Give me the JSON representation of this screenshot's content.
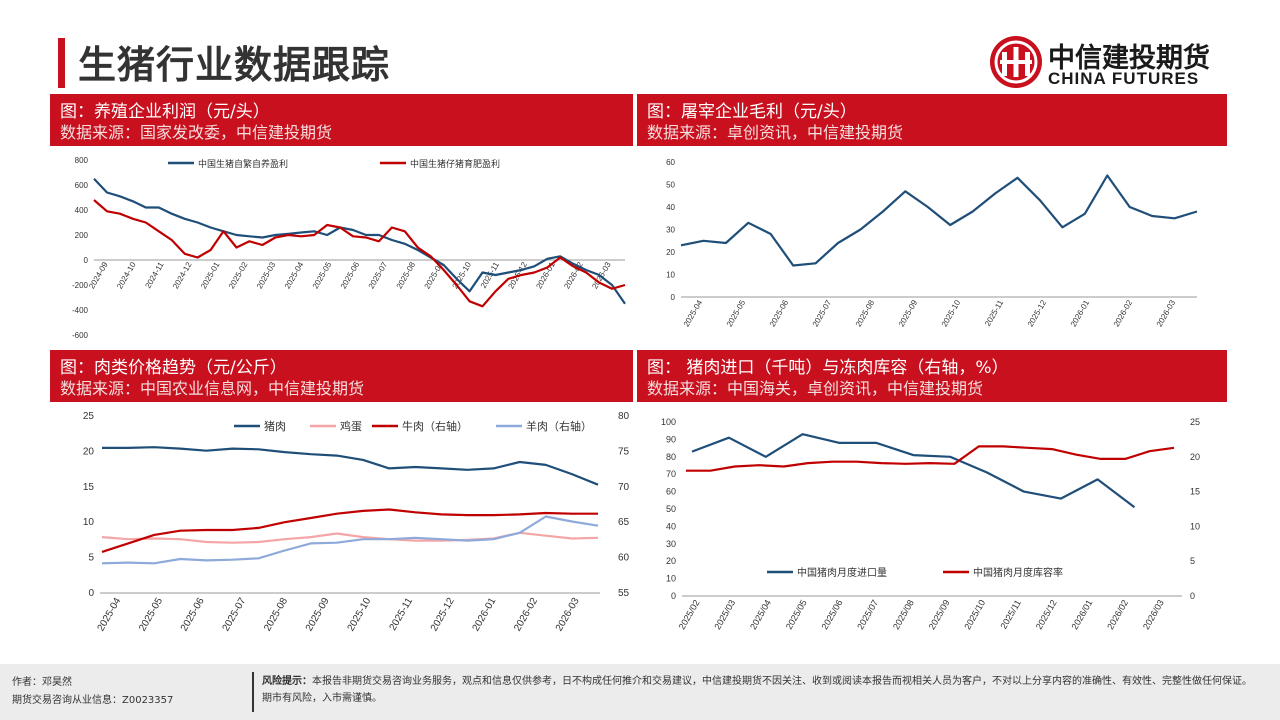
{
  "page": {
    "title": "生猪行业数据跟踪",
    "logo_cn": "中信建投期货",
    "logo_en": "CHINA FUTURES",
    "brand_color": "#c8101e"
  },
  "panels": [
    {
      "title": "图：养殖企业利润（元/头）",
      "source": "数据来源：国家发改委，中信建投期货"
    },
    {
      "title": "图：屠宰企业毛利（元/头）",
      "source": "数据来源：卓创资讯，中信建投期货"
    },
    {
      "title": "图：肉类价格趋势（元/公斤）",
      "source": "数据来源：中国农业信息网，中信建投期货"
    },
    {
      "title": "图：  猪肉进口（千吨）与冻肉库容（右轴，%）",
      "source": "数据来源：中国海关，卓创资讯，中信建投期货"
    }
  ],
  "footer": {
    "author": "作者：邓昊然",
    "license": "期货交易咨询从业信息：Z0023357",
    "risk_label": "风险提示：",
    "risk_text": "本报告非期货交易咨询业务服务，观点和信息仅供参考，日不构成任何推介和交易建议，中信建投期货不因关注、收到或阅读本报告而视相关人员为客户，不对以上分享内容的准确性、有效性、完整性做任何保证。期市有风险，入市需谨慎。"
  },
  "chart_data": [
    {
      "type": "line",
      "ylim": [
        -400,
        800
      ],
      "yticks": [
        "800",
        "600",
        "400",
        "200",
        "0",
        "-200",
        "-400",
        "-600"
      ],
      "xticks": [
        "2024-09",
        "2024-10",
        "2024-11",
        "2024-12",
        "2025-01",
        "2025-02",
        "2025-03",
        "2025-04",
        "2025-05",
        "2025-06",
        "2025-07",
        "2025-08",
        "2025-09",
        "2025-10",
        "2025-11",
        "2025-12",
        "2026-01",
        "2026-02",
        "2026-03"
      ],
      "series": [
        {
          "name": "中国生猪自繁自养盈利",
          "color": "#1f4e79",
          "values": [
            650,
            540,
            510,
            470,
            420,
            420,
            370,
            330,
            300,
            260,
            230,
            200,
            190,
            180,
            200,
            210,
            220,
            230,
            200,
            260,
            240,
            200,
            200,
            160,
            130,
            80,
            20,
            -40,
            -150,
            -250,
            -100,
            -120,
            -100,
            -80,
            -50,
            10,
            30,
            -30,
            -80,
            -120,
            -200,
            -350
          ]
        },
        {
          "name": "中国生猪仔猪育肥盈利",
          "color": "#c00000",
          "values": [
            480,
            390,
            370,
            330,
            300,
            230,
            160,
            50,
            20,
            80,
            230,
            100,
            150,
            120,
            180,
            200,
            190,
            200,
            280,
            260,
            190,
            180,
            150,
            260,
            230,
            100,
            30,
            -80,
            -200,
            -330,
            -370,
            -250,
            -150,
            -120,
            -100,
            -60,
            20,
            -50,
            -100,
            -180,
            -230,
            -200
          ]
        }
      ]
    },
    {
      "type": "line",
      "ylim": [
        0,
        60
      ],
      "yticks": [
        "0",
        "10",
        "20",
        "30",
        "40",
        "50",
        "60"
      ],
      "xticks": [
        "2025-04",
        "2025-05",
        "2025-06",
        "2025-07",
        "2025-08",
        "2025-09",
        "2025-10",
        "2025-11",
        "2025-12",
        "2026-01",
        "2026-02",
        "2026-03"
      ],
      "series": [
        {
          "name": "",
          "color": "#1f4e79",
          "values": [
            23,
            25,
            24,
            33,
            28,
            14,
            15,
            24,
            30,
            38,
            47,
            40,
            32,
            38,
            46,
            53,
            43,
            31,
            37,
            54,
            40,
            36,
            35,
            38
          ]
        }
      ]
    },
    {
      "type": "line",
      "ylim": [
        0,
        25
      ],
      "ylim_right": [
        55,
        80
      ],
      "yticks": [
        "0",
        "5",
        "10",
        "15",
        "20",
        "25"
      ],
      "yticks_right": [
        "55",
        "60",
        "65",
        "70",
        "75",
        "80"
      ],
      "xticks": [
        "2025-04",
        "2025-05",
        "2025-06",
        "2025-07",
        "2025-08",
        "2025-09",
        "2025-10",
        "2025-11",
        "2025-12",
        "2026-01",
        "2026-02",
        "2026-03"
      ],
      "series": [
        {
          "name": "猪肉",
          "color": "#1f4e79",
          "axis": "left",
          "values": [
            20.5,
            20.5,
            20.6,
            20.4,
            20.1,
            20.4,
            20.3,
            19.9,
            19.6,
            19.4,
            18.8,
            17.6,
            17.8,
            17.6,
            17.4,
            17.6,
            18.5,
            18.1,
            16.8,
            15.3
          ]
        },
        {
          "name": "鸡蛋",
          "color": "#f4a6a6",
          "axis": "left",
          "values": [
            7.9,
            7.6,
            7.7,
            7.6,
            7.2,
            7.1,
            7.2,
            7.6,
            7.9,
            8.4,
            7.9,
            7.6,
            7.4,
            7.4,
            7.5,
            7.7,
            8.5,
            8.1,
            7.7,
            7.8
          ]
        },
        {
          "name": "牛肉（右轴）",
          "color": "#c00000",
          "axis": "right",
          "values": [
            60.8,
            62.0,
            63.2,
            63.8,
            63.9,
            63.9,
            64.2,
            65.0,
            65.6,
            66.2,
            66.6,
            66.8,
            66.4,
            66.1,
            66.0,
            66.0,
            66.1,
            66.3,
            66.2,
            66.2
          ]
        },
        {
          "name": "羊肉（右轴）",
          "color": "#8eaadb",
          "axis": "right",
          "values": [
            59.2,
            59.3,
            59.2,
            59.8,
            59.6,
            59.7,
            59.9,
            61.0,
            62.0,
            62.1,
            62.6,
            62.6,
            62.8,
            62.6,
            62.4,
            62.6,
            63.5,
            65.8,
            65.1,
            64.5
          ]
        }
      ]
    },
    {
      "type": "line",
      "ylim": [
        0,
        100
      ],
      "ylim_right": [
        0,
        25
      ],
      "yticks": [
        "0",
        "10",
        "20",
        "30",
        "40",
        "50",
        "60",
        "70",
        "80",
        "90",
        "100"
      ],
      "yticks_right": [
        "0",
        "5",
        "10",
        "15",
        "20",
        "25"
      ],
      "xticks": [
        "2025/02",
        "2025/03",
        "2025/04",
        "2025/05",
        "2025/06",
        "2025/07",
        "2025/08",
        "2025/09",
        "2025/10",
        "2025/11",
        "2025/12",
        "2026/01",
        "2026/02",
        "2026/03"
      ],
      "series": [
        {
          "name": "中国猪肉月度进口量",
          "color": "#1f4e79",
          "axis": "left",
          "values": [
            83,
            91,
            80,
            93,
            88,
            88,
            81,
            80,
            71,
            60,
            56,
            67,
            51
          ]
        },
        {
          "name": "中国猪肉月度库容率",
          "color": "#c00000",
          "axis": "right",
          "values": [
            18.0,
            18.0,
            18.6,
            18.8,
            18.6,
            19.1,
            19.3,
            19.3,
            19.1,
            19.0,
            19.1,
            19.0,
            21.5,
            21.5,
            21.3,
            21.1,
            20.3,
            19.7,
            19.7,
            20.8,
            21.3
          ]
        }
      ]
    }
  ]
}
